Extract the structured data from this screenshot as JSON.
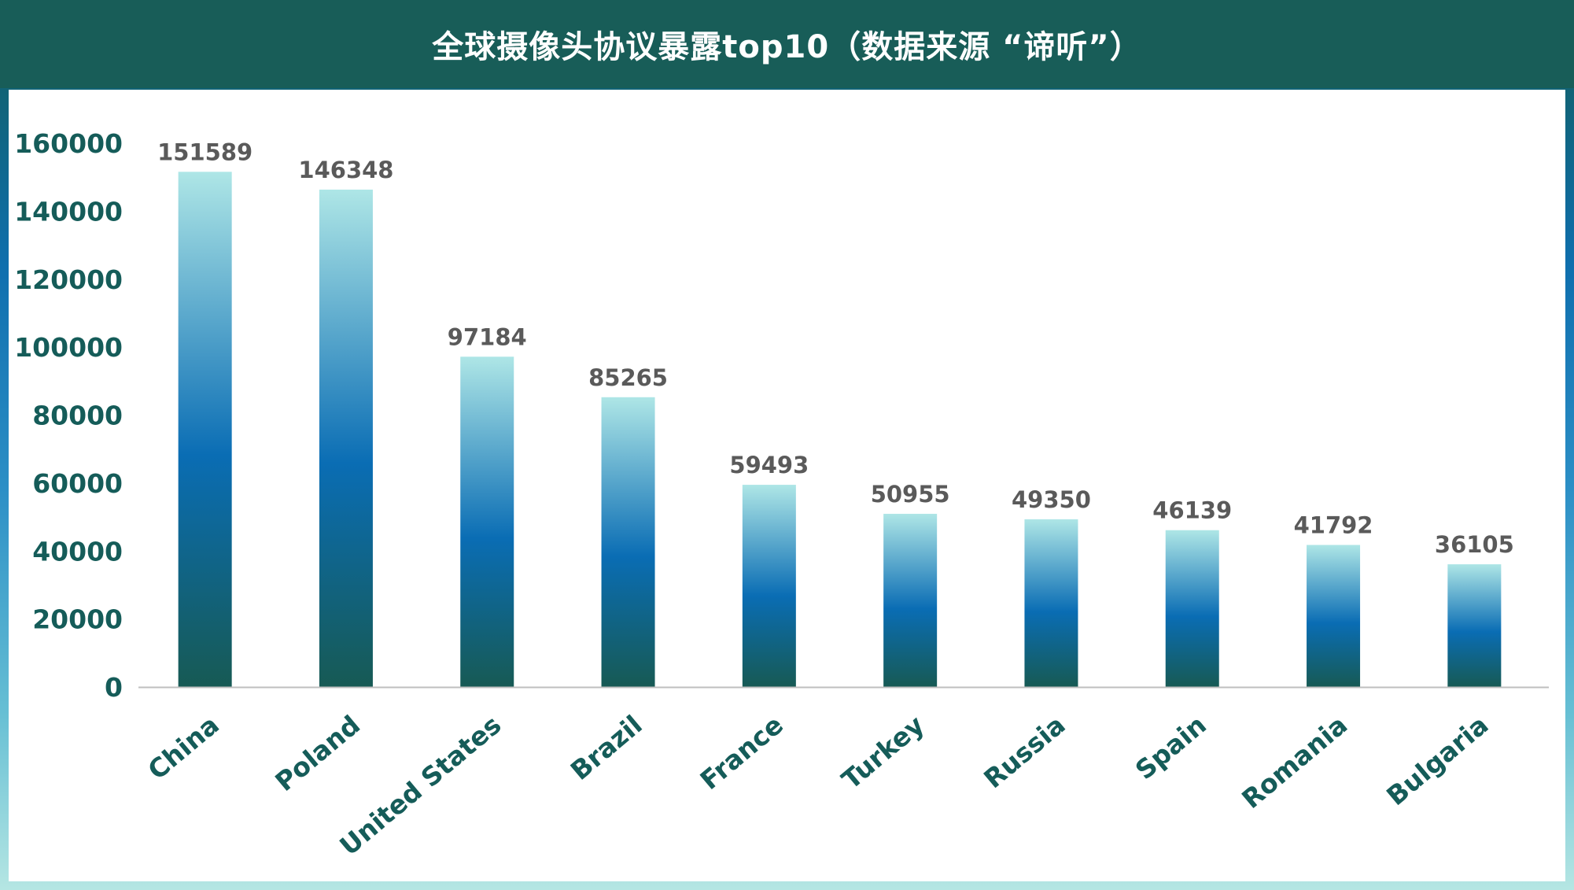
{
  "header": {
    "title": "全球摄像头协议暴露top10（数据来源 “谛听”）"
  },
  "chart_data": {
    "type": "bar",
    "title": "全球摄像头协议暴露top10（数据来源 “谛听”）",
    "categories": [
      "China",
      "Poland",
      "United States",
      "Brazil",
      "France",
      "Turkey",
      "Russia",
      "Spain",
      "Romania",
      "Bulgaria"
    ],
    "values": [
      151589,
      146348,
      97184,
      85265,
      59493,
      50955,
      49350,
      46139,
      41792,
      36105
    ],
    "data_labels": [
      "151589",
      "146348",
      "97184",
      "85265",
      "59493",
      "50955",
      "49350",
      "46139",
      "41792",
      "36105"
    ],
    "ylim": [
      0,
      160000
    ],
    "yticks": [
      "0",
      "20000",
      "40000",
      "60000",
      "80000",
      "100000",
      "120000",
      "140000",
      "160000"
    ],
    "grid": false,
    "legend": "none",
    "colors": {
      "bar_top": "#aee6e6",
      "bar_mid": "#0a6db4",
      "bar_bottom": "#175a54",
      "axis_text": "#155c59",
      "data_label": "#5a5a5a",
      "axis_line": "#bfbfbf"
    }
  }
}
